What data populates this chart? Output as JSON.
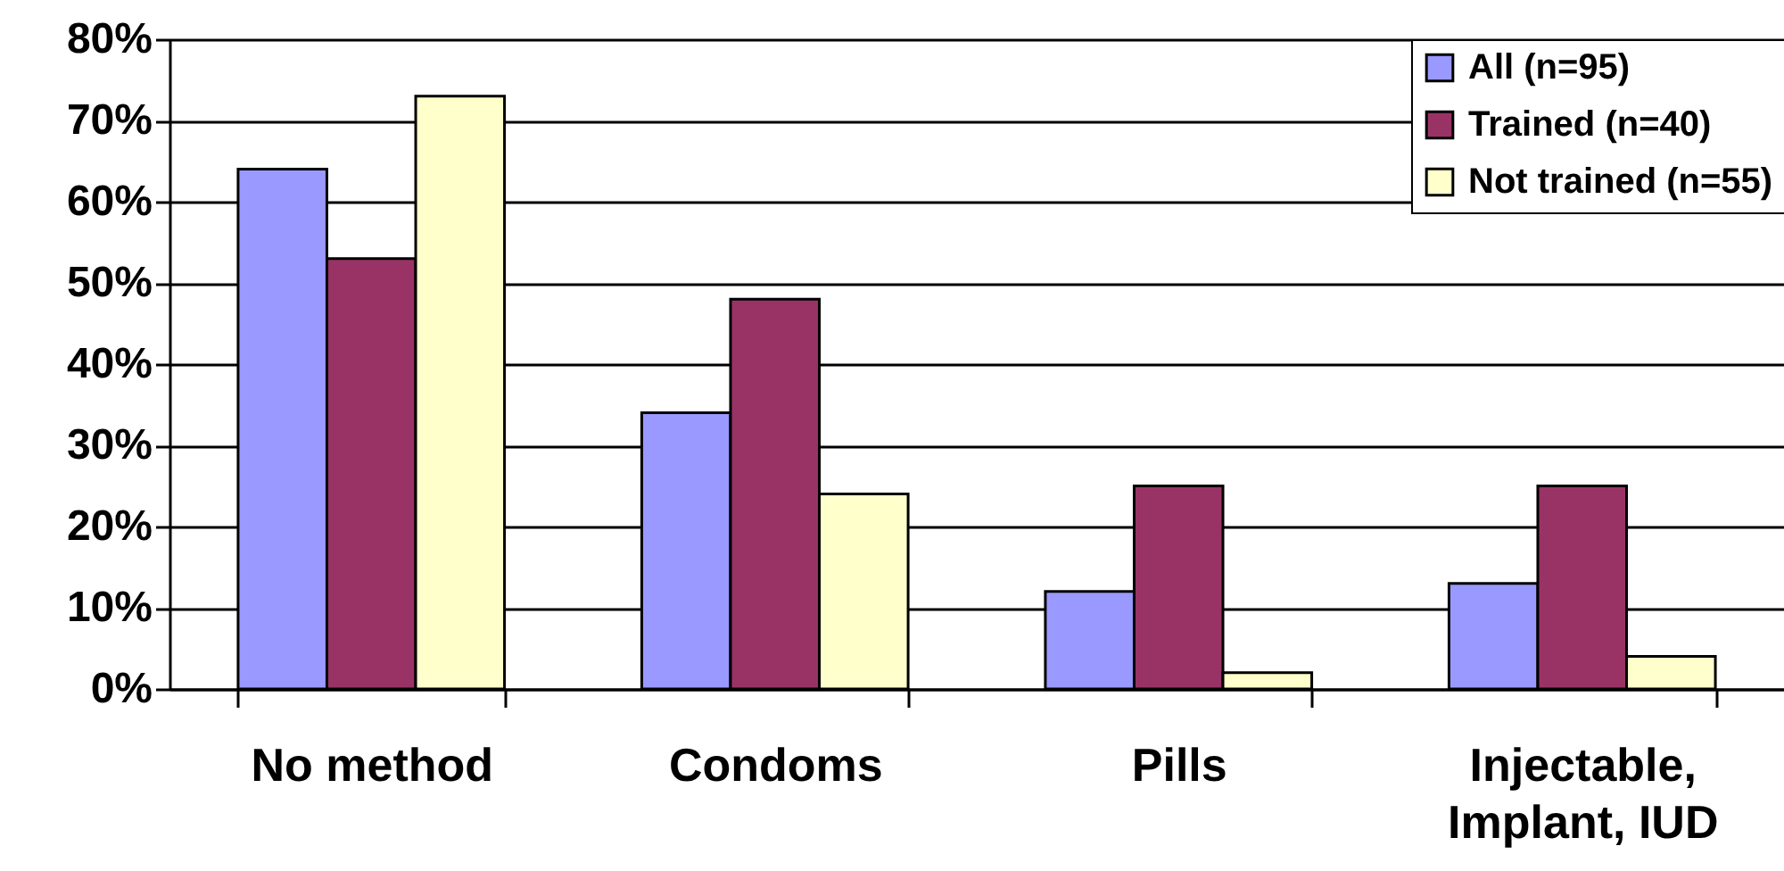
{
  "chart_data": {
    "type": "bar",
    "categories": [
      "No method",
      "Condoms",
      "Pills",
      "Injectable, Implant, IUD"
    ],
    "series": [
      {
        "name": "All (n=95)",
        "color": "#9999ff",
        "values": [
          64,
          34,
          12,
          13
        ]
      },
      {
        "name": "Trained (n=40)",
        "color": "#993366",
        "values": [
          53,
          48,
          25,
          25
        ]
      },
      {
        "name": "Not trained (n=55)",
        "color": "#ffffcc",
        "values": [
          73,
          24,
          2,
          4
        ]
      }
    ],
    "ylim": [
      0,
      80
    ],
    "yticks": [
      {
        "value": 0,
        "label": "0%"
      },
      {
        "value": 10,
        "label": "10%"
      },
      {
        "value": 20,
        "label": "20%"
      },
      {
        "value": 30,
        "label": "30%"
      },
      {
        "value": 40,
        "label": "40%"
      },
      {
        "value": 50,
        "label": "50%"
      },
      {
        "value": 60,
        "label": "60%"
      },
      {
        "value": 70,
        "label": "70%"
      },
      {
        "value": 80,
        "label": "80%"
      }
    ],
    "grid": "y",
    "legend": "top right"
  }
}
